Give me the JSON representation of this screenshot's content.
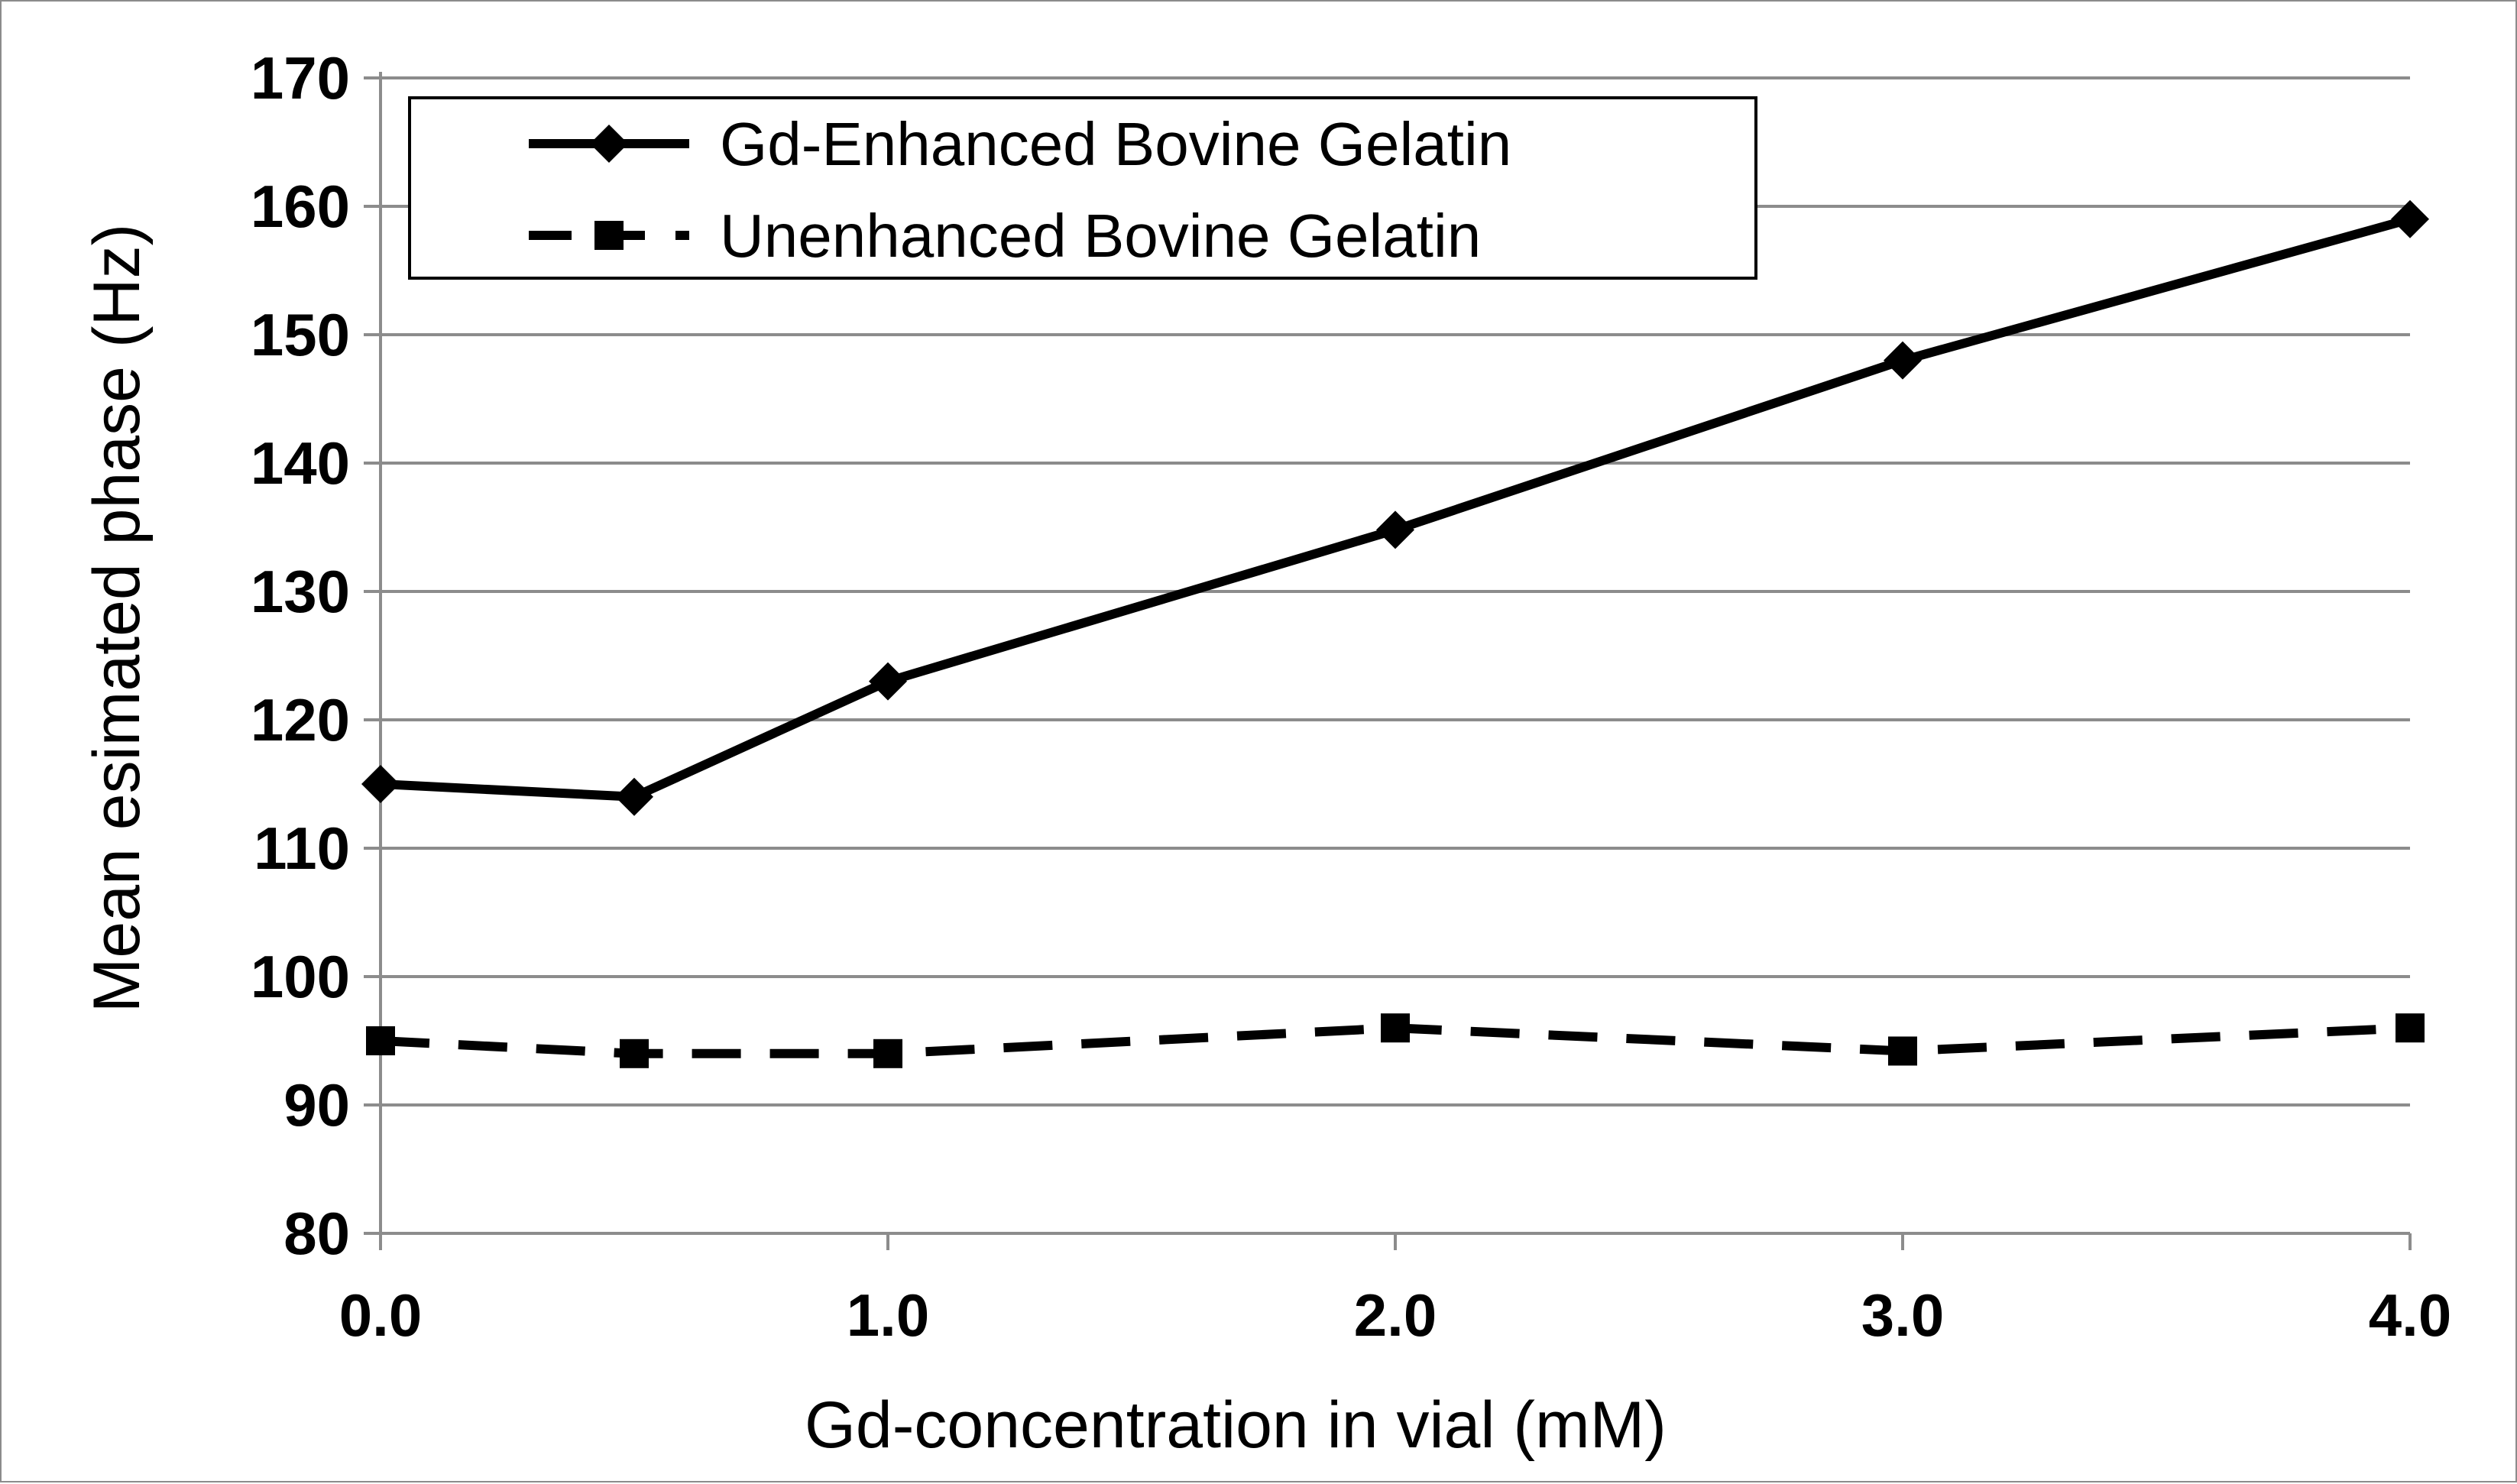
{
  "chart_data": {
    "type": "line",
    "title": "",
    "xlabel": "Gd-concentration in vial (mM)",
    "ylabel": "Mean esimated phase (Hz)",
    "xlim": [
      0,
      4
    ],
    "ylim": [
      80,
      170
    ],
    "x_ticks": [
      0,
      1,
      2,
      3,
      4
    ],
    "x_tick_labels": [
      "0.0",
      "1.0",
      "2.0",
      "3.0",
      "4.0"
    ],
    "y_ticks": [
      80,
      90,
      100,
      110,
      120,
      130,
      140,
      150,
      160,
      170
    ],
    "y_tick_labels": [
      "80",
      "90",
      "100",
      "110",
      "120",
      "130",
      "140",
      "150",
      "160",
      "170"
    ],
    "grid": true,
    "legend_position": "top-left",
    "series": [
      {
        "name": "Gd-Enhanced Bovine Gelatin",
        "line_style": "solid",
        "marker": "diamond",
        "color": "#000000",
        "x": [
          0,
          0.5,
          1,
          2,
          3,
          4
        ],
        "y": [
          115,
          114,
          123,
          134.8,
          148,
          159
        ]
      },
      {
        "name": "Unenhanced Bovine Gelatin",
        "line_style": "dashed",
        "marker": "square",
        "color": "#000000",
        "x": [
          0,
          0.5,
          1,
          2,
          3,
          4
        ],
        "y": [
          95,
          94,
          94,
          96,
          94.2,
          96
        ]
      }
    ]
  }
}
